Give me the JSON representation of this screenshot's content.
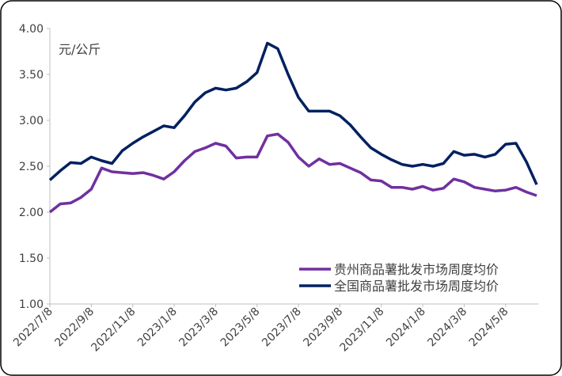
{
  "chart_data": {
    "type": "line",
    "y_unit": "元/公斤",
    "categories": [
      "2022/7/8",
      null,
      null,
      null,
      "2022/9/8",
      null,
      null,
      null,
      "2022/11/8",
      null,
      null,
      null,
      "2023/1/8",
      null,
      null,
      null,
      "2023/3/8",
      null,
      null,
      null,
      "2023/5/8",
      null,
      null,
      null,
      "2023/7/8",
      null,
      null,
      null,
      "2023/9/8",
      null,
      null,
      null,
      "2023/11/8",
      null,
      null,
      null,
      "2024/1/8",
      null,
      null,
      null,
      "2024/3/8",
      null,
      null,
      null,
      "2024/5/8",
      null,
      null,
      null
    ],
    "series": [
      {
        "name": "贵州商品薯批发市场周度均价",
        "color": "#7030a0",
        "values": [
          2.0,
          2.09,
          2.1,
          2.16,
          2.25,
          2.48,
          2.44,
          2.43,
          2.42,
          2.43,
          2.4,
          2.36,
          2.44,
          2.56,
          2.66,
          2.7,
          2.75,
          2.72,
          2.59,
          2.6,
          2.6,
          2.83,
          2.85,
          2.76,
          2.6,
          2.5,
          2.58,
          2.52,
          2.53,
          2.48,
          2.43,
          2.35,
          2.34,
          2.27,
          2.27,
          2.25,
          2.28,
          2.24,
          2.26,
          2.36,
          2.33,
          2.27,
          2.25,
          2.23,
          2.24,
          2.27,
          2.22,
          2.18
        ]
      },
      {
        "name": "全国商品薯批发市场周度均价",
        "color": "#002060",
        "values": [
          2.35,
          2.45,
          2.54,
          2.53,
          2.6,
          2.56,
          2.53,
          2.67,
          2.75,
          2.82,
          2.88,
          2.94,
          2.92,
          3.05,
          3.2,
          3.3,
          3.35,
          3.33,
          3.35,
          3.42,
          3.52,
          3.84,
          3.78,
          3.5,
          3.25,
          3.1,
          3.1,
          3.1,
          3.05,
          2.95,
          2.82,
          2.7,
          2.63,
          2.57,
          2.52,
          2.5,
          2.52,
          2.5,
          2.53,
          2.66,
          2.62,
          2.63,
          2.6,
          2.63,
          2.74,
          2.75,
          2.55,
          2.3
        ]
      }
    ],
    "ylim": [
      1.0,
      4.0
    ],
    "yticks": [
      {
        "value": 1.0,
        "label": "1.00"
      },
      {
        "value": 1.5,
        "label": "1.50"
      },
      {
        "value": 2.0,
        "label": "2.00"
      },
      {
        "value": 2.5,
        "label": "2.50"
      },
      {
        "value": 3.0,
        "label": "3.00"
      },
      {
        "value": 3.5,
        "label": "3.50"
      },
      {
        "value": 4.0,
        "label": "4.00"
      }
    ],
    "grid": false,
    "legend_position": "lower right"
  }
}
